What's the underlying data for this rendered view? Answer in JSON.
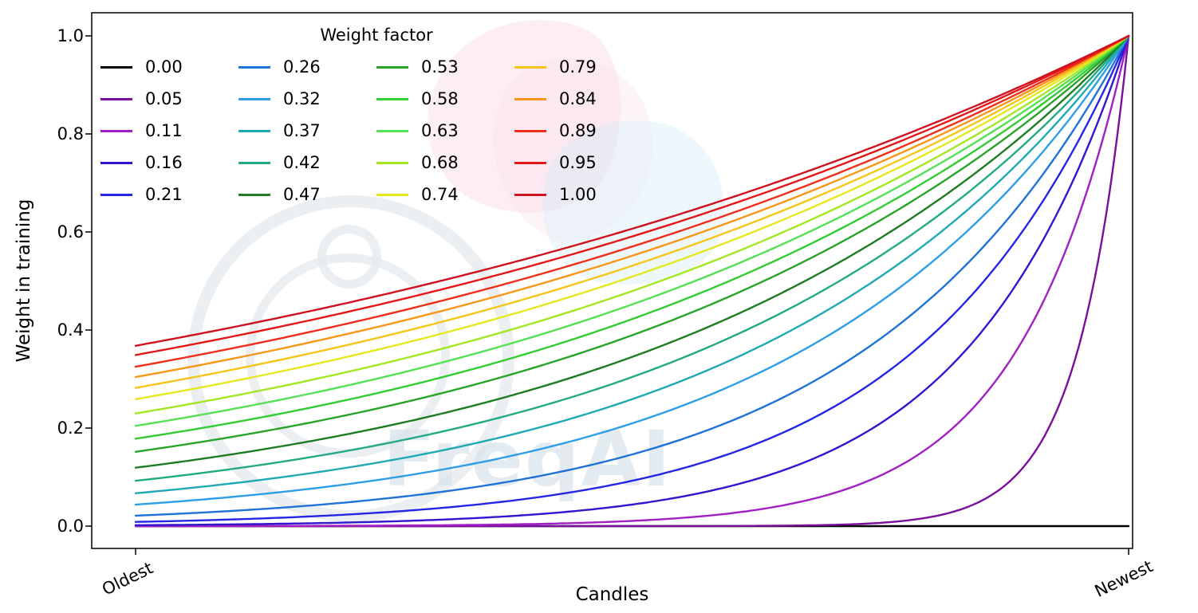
{
  "watermark": {
    "text": "FreqAI"
  },
  "chart_data": {
    "type": "line",
    "title": "",
    "xlabel": "Candles",
    "ylabel": "Weight in training",
    "x_tick_labels": [
      "Oldest",
      "Newest"
    ],
    "y_ticks": [
      "0.0",
      "0.2",
      "0.4",
      "0.6",
      "0.8",
      "1.0"
    ],
    "ylim": [
      0,
      1
    ],
    "x_domain": "normalized candle index t in [0,1] from Oldest to Newest",
    "grid": false,
    "legend_title": "Weight factor",
    "legend_position": "upper left",
    "legend_columns": 4,
    "curve_formula": "weight(t) = exp(-(1 - t) / w) for w > 0; weight(t) = 0 for w = 0; every curve with w > 0 reaches 1.0 at Newest",
    "series": [
      {
        "label": "0.00",
        "weight_factor": 0.0,
        "color": "#000000",
        "left_endpoint": 0.0,
        "right_endpoint": 0.0
      },
      {
        "label": "0.05",
        "weight_factor": 0.05,
        "color": "#7a0f9c",
        "left_endpoint": 0.0,
        "right_endpoint": 1.0
      },
      {
        "label": "0.11",
        "weight_factor": 0.11,
        "color": "#a11fc4",
        "left_endpoint": 0.0,
        "right_endpoint": 1.0
      },
      {
        "label": "0.16",
        "weight_factor": 0.16,
        "color": "#3314cf",
        "left_endpoint": 0.002,
        "right_endpoint": 1.0
      },
      {
        "label": "0.21",
        "weight_factor": 0.21,
        "color": "#2525e6",
        "left_endpoint": 0.009,
        "right_endpoint": 1.0
      },
      {
        "label": "0.26",
        "weight_factor": 0.26,
        "color": "#1f72d6",
        "left_endpoint": 0.021,
        "right_endpoint": 1.0
      },
      {
        "label": "0.32",
        "weight_factor": 0.32,
        "color": "#2e9fe6",
        "left_endpoint": 0.044,
        "right_endpoint": 1.0
      },
      {
        "label": "0.37",
        "weight_factor": 0.37,
        "color": "#1fa9b4",
        "left_endpoint": 0.067,
        "right_endpoint": 1.0
      },
      {
        "label": "0.42",
        "weight_factor": 0.42,
        "color": "#23a983",
        "left_endpoint": 0.092,
        "right_endpoint": 1.0
      },
      {
        "label": "0.47",
        "weight_factor": 0.47,
        "color": "#1e7d22",
        "left_endpoint": 0.119,
        "right_endpoint": 1.0
      },
      {
        "label": "0.53",
        "weight_factor": 0.53,
        "color": "#28a428",
        "left_endpoint": 0.152,
        "right_endpoint": 1.0
      },
      {
        "label": "0.58",
        "weight_factor": 0.58,
        "color": "#33cc33",
        "left_endpoint": 0.178,
        "right_endpoint": 1.0
      },
      {
        "label": "0.63",
        "weight_factor": 0.63,
        "color": "#55e055",
        "left_endpoint": 0.204,
        "right_endpoint": 1.0
      },
      {
        "label": "0.68",
        "weight_factor": 0.68,
        "color": "#a2e822",
        "left_endpoint": 0.23,
        "right_endpoint": 1.0
      },
      {
        "label": "0.74",
        "weight_factor": 0.74,
        "color": "#e6e81f",
        "left_endpoint": 0.259,
        "right_endpoint": 1.0
      },
      {
        "label": "0.79",
        "weight_factor": 0.79,
        "color": "#f6c51a",
        "left_endpoint": 0.282,
        "right_endpoint": 1.0
      },
      {
        "label": "0.84",
        "weight_factor": 0.84,
        "color": "#f79617",
        "left_endpoint": 0.304,
        "right_endpoint": 1.0
      },
      {
        "label": "0.89",
        "weight_factor": 0.89,
        "color": "#ef2e1c",
        "left_endpoint": 0.325,
        "right_endpoint": 1.0
      },
      {
        "label": "0.95",
        "weight_factor": 0.95,
        "color": "#e31717",
        "left_endpoint": 0.349,
        "right_endpoint": 1.0
      },
      {
        "label": "1.00",
        "weight_factor": 1.0,
        "color": "#cf1220",
        "left_endpoint": 0.368,
        "right_endpoint": 1.0
      }
    ]
  }
}
